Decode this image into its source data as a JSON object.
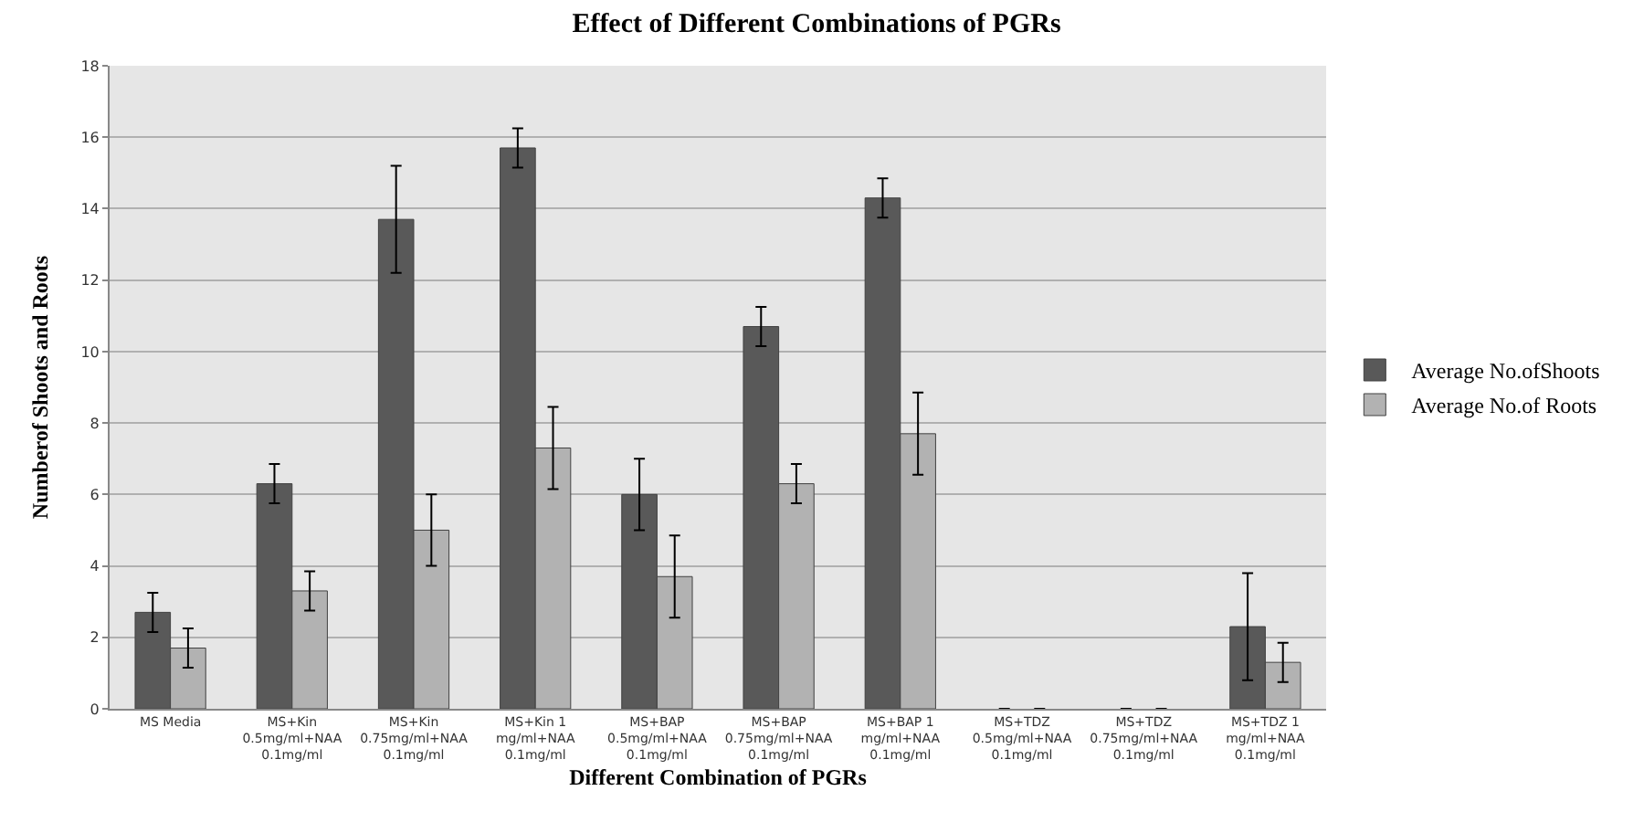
{
  "chart_data": {
    "type": "bar",
    "title": "Effect of Different Combinations of PGRs",
    "xlabel": "Different Combination of PGRs",
    "ylabel": "Numberof Shoots and Roots",
    "categories": [
      "MS Media",
      "MS+Kin\n0.5mg/ml+NAA\n0.1mg/ml",
      "MS+Kin\n0.75mg/ml+NAA\n0.1mg/ml",
      "MS+Kin 1\nmg/ml+NAA\n0.1mg/ml",
      "MS+BAP\n0.5mg/ml+NAA\n0.1mg/ml",
      "MS+BAP\n0.75mg/ml+NAA\n0.1mg/ml",
      "MS+BAP 1\nmg/ml+NAA\n0.1mg/ml",
      "MS+TDZ\n0.5mg/ml+NAA\n0.1mg/ml",
      "MS+TDZ\n0.75mg/ml+NAA\n0.1mg/ml",
      "MS+TDZ 1\nmg/ml+NAA\n0.1mg/ml"
    ],
    "series": [
      {
        "name": "Average No.ofShoots",
        "color": "#595959",
        "values": [
          2.7,
          6.3,
          13.7,
          15.7,
          6.0,
          10.7,
          14.3,
          0,
          0,
          2.3
        ],
        "errors": [
          0.55,
          0.55,
          1.5,
          0.55,
          1.0,
          0.55,
          0.55,
          null,
          null,
          1.5
        ]
      },
      {
        "name": "Average No.of Roots",
        "color": "#b2b2b2",
        "values": [
          1.7,
          3.3,
          5.0,
          7.3,
          3.7,
          6.3,
          7.7,
          0,
          0,
          1.3
        ],
        "errors": [
          0.55,
          0.55,
          1.0,
          1.15,
          1.15,
          0.55,
          1.15,
          null,
          null,
          0.55
        ]
      }
    ],
    "ylim": [
      0,
      18
    ],
    "yticks": [
      0,
      2,
      4,
      6,
      8,
      10,
      12,
      14,
      16,
      18
    ],
    "grid": "y",
    "legend": "right"
  }
}
